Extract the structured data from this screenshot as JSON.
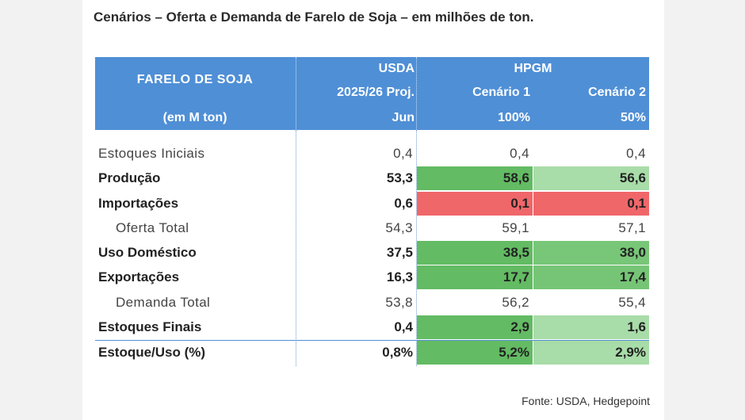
{
  "title": "Cenários – Oferta e Demanda de Farelo de Soja – em milhões de ton.",
  "header": {
    "left_line1": "FARELO DE SOJA",
    "left_line2": "(em M ton)",
    "usda_line1": "USDA",
    "usda_line2": "2025/26 Proj.",
    "usda_line3": "Jun",
    "hpgm": "HPGM",
    "c1_line1": "Cenário 1",
    "c1_line2": "100%",
    "c2_line1": "Cenário 2",
    "c2_line2": "50%"
  },
  "colors": {
    "header_bg": "#4f8fd6",
    "green_strong": "#5cb85c",
    "green_medium": "#8fd08f",
    "green_light": "#b5e1b5",
    "red": "#f0676a"
  },
  "rows": [
    {
      "label": "Estoques Iniciais",
      "usda": "0,4",
      "c1": "0,4",
      "c2": "0,4",
      "style": "light",
      "c1_color": "",
      "c2_color": ""
    },
    {
      "label": "Produção",
      "usda": "53,3",
      "c1": "58,6",
      "c2": "56,6",
      "style": "bold",
      "c1_color": "#63bb63",
      "c2_color": "#a8dca8"
    },
    {
      "label": "Importações",
      "usda": "0,6",
      "c1": "0,1",
      "c2": "0,1",
      "style": "bold",
      "c1_color": "#f0676a",
      "c2_color": "#f0676a"
    },
    {
      "label": "Oferta Total",
      "usda": "54,3",
      "c1": "59,1",
      "c2": "57,1",
      "style": "light indent",
      "c1_color": "",
      "c2_color": ""
    },
    {
      "label": "Uso Doméstico",
      "usda": "37,5",
      "c1": "38,5",
      "c2": "38,0",
      "style": "bold",
      "c1_color": "#63bb63",
      "c2_color": "#78c678"
    },
    {
      "label": "Exportações",
      "usda": "16,3",
      "c1": "17,7",
      "c2": "17,4",
      "style": "bold",
      "c1_color": "#63bb63",
      "c2_color": "#76c576"
    },
    {
      "label": "Demanda Total",
      "usda": "53,8",
      "c1": "56,2",
      "c2": "55,4",
      "style": "light indent",
      "c1_color": "",
      "c2_color": ""
    },
    {
      "label": "Estoques Finais",
      "usda": "0,4",
      "c1": "2,9",
      "c2": "1,6",
      "style": "bold",
      "c1_color": "#63bb63",
      "c2_color": "#a8dca8"
    },
    {
      "label": "Estoque/Uso (%)",
      "usda": "0,8%",
      "c1": "5,2%",
      "c2": "2,9%",
      "style": "bold total-line",
      "c1_color": "#63bb63",
      "c2_color": "#a8dca8"
    }
  ],
  "source": "Fonte: USDA, Hedgepoint"
}
